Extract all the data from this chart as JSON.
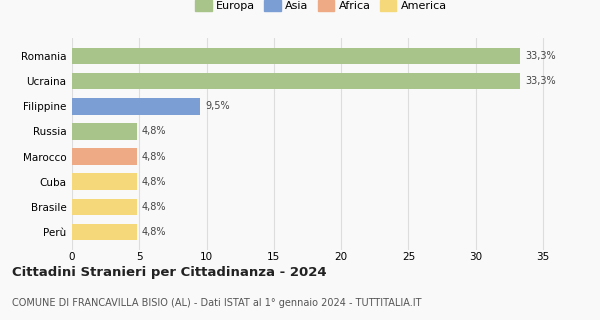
{
  "categories": [
    "Perù",
    "Brasile",
    "Cuba",
    "Marocco",
    "Russia",
    "Filippine",
    "Ucraina",
    "Romania"
  ],
  "values": [
    4.8,
    4.8,
    4.8,
    4.8,
    4.8,
    9.5,
    33.3,
    33.3
  ],
  "bar_colors": [
    "#f5d87a",
    "#f5d87a",
    "#f5d87a",
    "#eeaa85",
    "#a8c48a",
    "#7b9fd4",
    "#a8c48a",
    "#a8c48a"
  ],
  "labels": [
    "4,8%",
    "4,8%",
    "4,8%",
    "4,8%",
    "4,8%",
    "9,5%",
    "33,3%",
    "33,3%"
  ],
  "legend": [
    {
      "label": "Europa",
      "color": "#a8c48a"
    },
    {
      "label": "Asia",
      "color": "#7b9fd4"
    },
    {
      "label": "Africa",
      "color": "#eeaa85"
    },
    {
      "label": "America",
      "color": "#f5d87a"
    }
  ],
  "xlim": [
    0,
    37
  ],
  "xticks": [
    0,
    5,
    10,
    15,
    20,
    25,
    30,
    35
  ],
  "title": "Cittadini Stranieri per Cittadinanza - 2024",
  "subtitle": "COMUNE DI FRANCAVILLA BISIO (AL) - Dati ISTAT al 1° gennaio 2024 - TUTTITALIA.IT",
  "background_color": "#f9f9f9",
  "grid_color": "#dddddd",
  "bar_label_fontsize": 7.0,
  "ytick_fontsize": 7.5,
  "xtick_fontsize": 7.5,
  "legend_fontsize": 8.0,
  "title_fontsize": 9.5,
  "subtitle_fontsize": 7.0
}
